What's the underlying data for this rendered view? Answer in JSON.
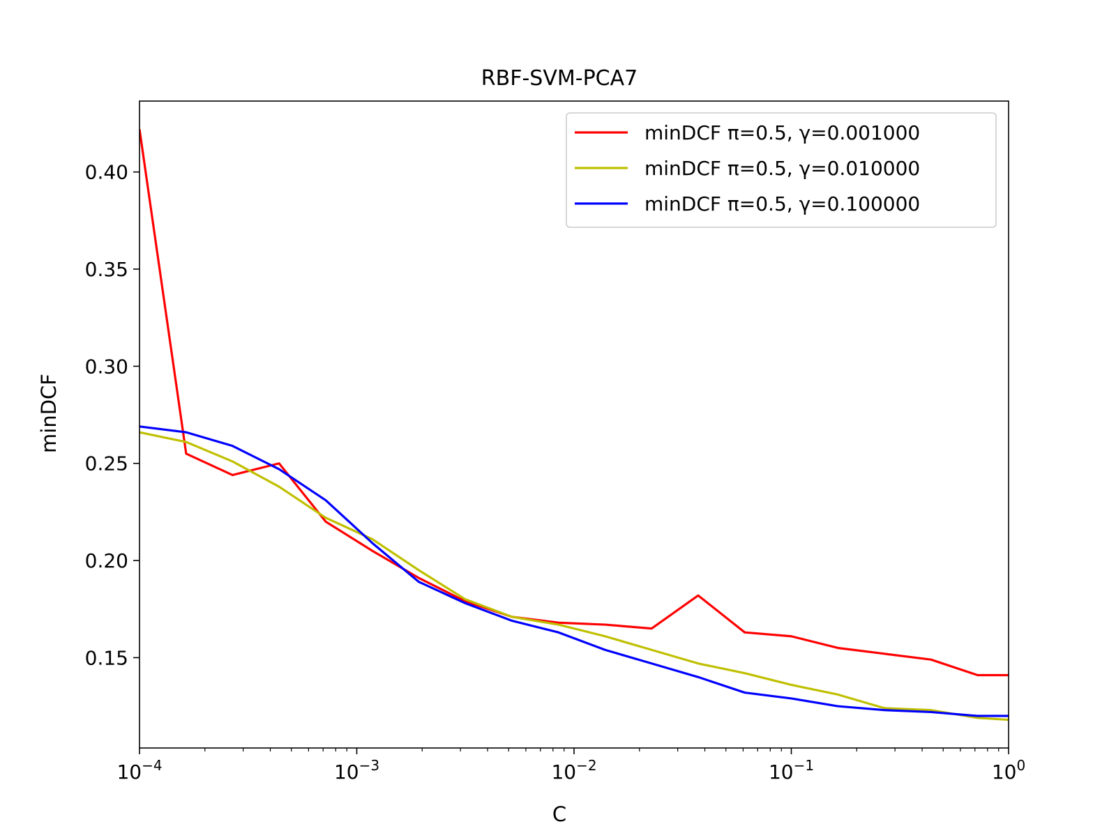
{
  "chart_data": {
    "type": "line",
    "title": "RBF-SVM-PCA7",
    "xlabel": "C",
    "ylabel": "minDCF",
    "xscale": "log",
    "xlim": [
      0.0001,
      1
    ],
    "ylim": [
      0.1035,
      0.4365
    ],
    "grid": false,
    "legend_position": "top-right",
    "x_ticks": [
      {
        "value": 0.0001,
        "base": "10",
        "exp": "−4"
      },
      {
        "value": 0.001,
        "base": "10",
        "exp": "−3"
      },
      {
        "value": 0.01,
        "base": "10",
        "exp": "−2"
      },
      {
        "value": 0.1,
        "base": "10",
        "exp": "−1"
      },
      {
        "value": 1,
        "base": "10",
        "exp": "0"
      }
    ],
    "y_ticks": [
      {
        "value": 0.15,
        "label": "0.15"
      },
      {
        "value": 0.2,
        "label": "0.20"
      },
      {
        "value": 0.25,
        "label": "0.25"
      },
      {
        "value": 0.3,
        "label": "0.30"
      },
      {
        "value": 0.35,
        "label": "0.35"
      },
      {
        "value": 0.4,
        "label": "0.40"
      }
    ],
    "x": [
      0.0001,
      0.000164,
      0.000268,
      0.000439,
      0.00072,
      0.001179,
      0.001931,
      0.003162,
      0.005179,
      0.008483,
      0.013895,
      0.022758,
      0.037276,
      0.061054,
      0.1,
      0.163789,
      0.26827,
      0.439397,
      0.719686,
      1.0
    ],
    "series": [
      {
        "name": "minDCF π=0.5, γ=0.001000",
        "color": "#ff0000",
        "values": [
          0.422,
          0.255,
          0.244,
          0.25,
          0.22,
          0.205,
          0.191,
          0.179,
          0.171,
          0.168,
          0.167,
          0.165,
          0.182,
          0.163,
          0.161,
          0.155,
          0.152,
          0.149,
          0.141,
          0.141
        ]
      },
      {
        "name": "minDCF π=0.5, γ=0.010000",
        "color": "#bfbf00",
        "values": [
          0.266,
          0.261,
          0.251,
          0.238,
          0.222,
          0.211,
          0.195,
          0.18,
          0.171,
          0.167,
          0.161,
          0.154,
          0.147,
          0.142,
          0.136,
          0.131,
          0.124,
          0.123,
          0.119,
          0.118
        ]
      },
      {
        "name": "minDCF π=0.5, γ=0.100000",
        "color": "#0000ff",
        "values": [
          0.269,
          0.266,
          0.259,
          0.247,
          0.231,
          0.209,
          0.189,
          0.178,
          0.169,
          0.163,
          0.154,
          0.147,
          0.14,
          0.132,
          0.129,
          0.125,
          0.123,
          0.122,
          0.12,
          0.12
        ]
      }
    ]
  }
}
